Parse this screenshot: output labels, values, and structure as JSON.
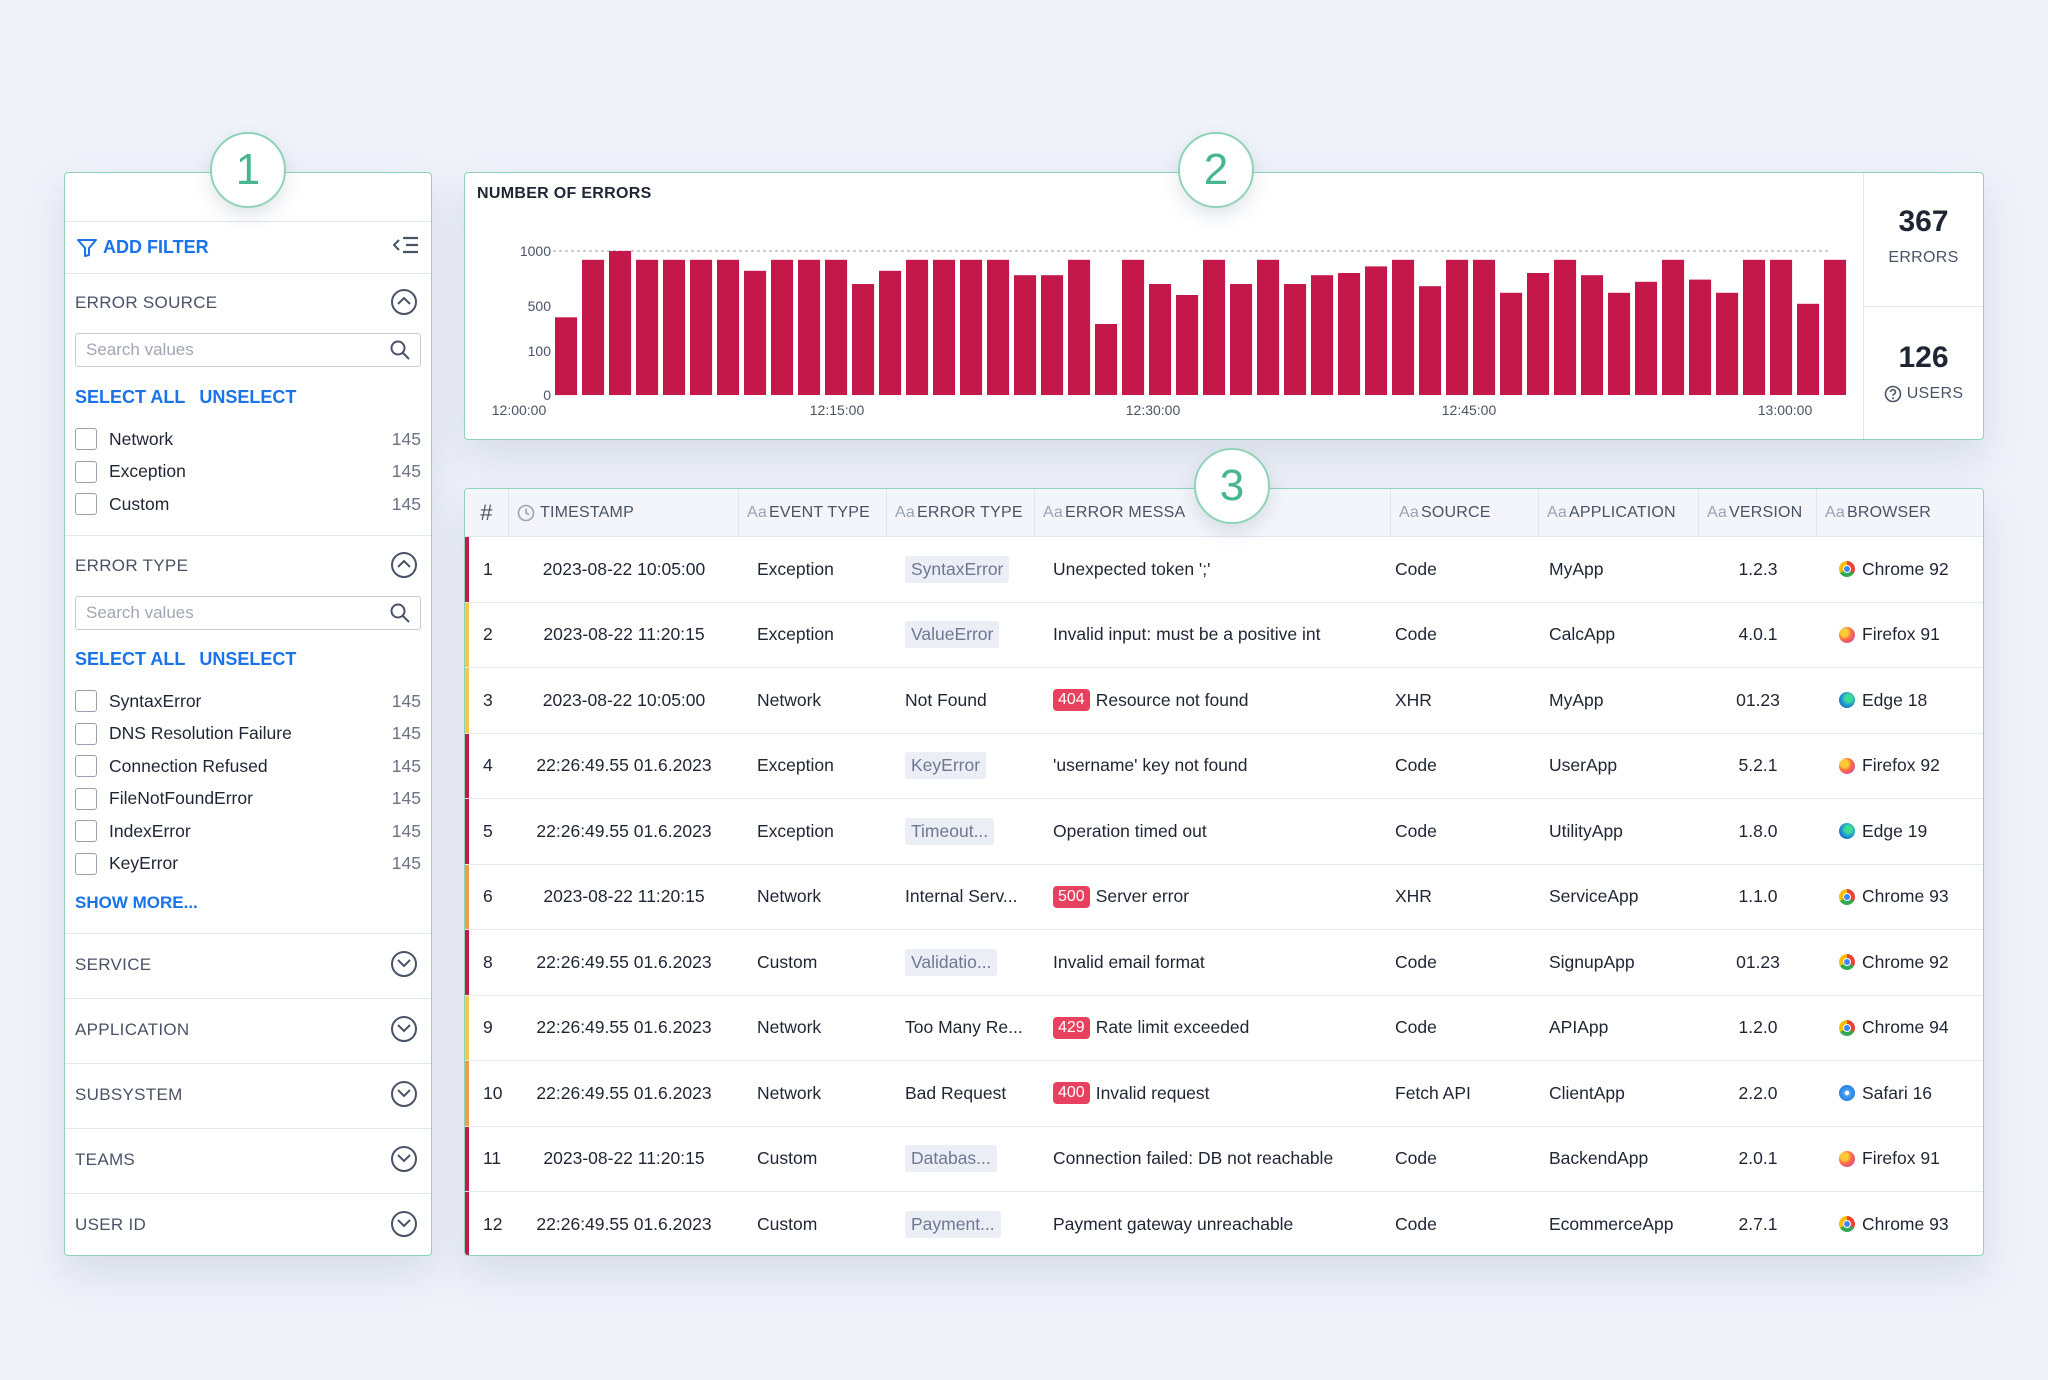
{
  "steps": [
    "1",
    "2",
    "3"
  ],
  "sidebar": {
    "add_filter_label": "ADD FILTER",
    "sections": {
      "error_source": {
        "title": "ERROR SOURCE",
        "search_placeholder": "Search values",
        "select_all": "SELECT ALL",
        "unselect": "UNSELECT",
        "items": [
          {
            "label": "Network",
            "count": "145"
          },
          {
            "label": "Exception",
            "count": "145"
          },
          {
            "label": "Custom",
            "count": "145"
          }
        ]
      },
      "error_type": {
        "title": "ERROR TYPE",
        "search_placeholder": "Search values",
        "select_all": "SELECT ALL",
        "unselect": "UNSELECT",
        "items": [
          {
            "label": "SyntaxError",
            "count": "145"
          },
          {
            "label": "DNS Resolution Failure",
            "count": "145"
          },
          {
            "label": "Connection Refused",
            "count": "145"
          },
          {
            "label": "FileNotFoundError",
            "count": "145"
          },
          {
            "label": "IndexError",
            "count": "145"
          },
          {
            "label": "KeyError",
            "count": "145"
          }
        ],
        "show_more": "SHOW MORE..."
      },
      "collapsed": [
        "SERVICE",
        "APPLICATION",
        "SUBSYSTEM",
        "TEAMS",
        "USER ID"
      ]
    }
  },
  "stats": {
    "errors_value": "367",
    "errors_label": "ERRORS",
    "users_value": "126",
    "users_label": "USERS"
  },
  "chart_data": {
    "type": "bar",
    "title": "NUMBER OF ERRORS",
    "xlabel": "",
    "ylabel": "",
    "color": "#c4174a",
    "y_tick_labels": [
      "0",
      "100",
      "500",
      "1000"
    ],
    "x_tick_labels": [
      "12:00:00",
      "12:15:00",
      "12:30:00",
      "12:45:00",
      "13:00:00"
    ],
    "scale": "non-linear (ticks 0, 100, 500, 1000 equally spaced)",
    "values": [
      400,
      920,
      1000,
      920,
      920,
      920,
      920,
      820,
      920,
      920,
      920,
      700,
      820,
      920,
      920,
      920,
      920,
      780,
      780,
      920,
      340,
      920,
      700,
      600,
      920,
      700,
      920,
      700,
      780,
      800,
      860,
      920,
      680,
      920,
      920,
      620,
      800,
      920,
      780,
      620,
      720,
      920,
      740,
      620,
      920,
      920,
      520,
      920
    ]
  },
  "table": {
    "columns": [
      {
        "label": "#",
        "aa": ""
      },
      {
        "label": "TIMESTAMP",
        "aa": ""
      },
      {
        "label": "EVENT TYPE",
        "aa": "Aa"
      },
      {
        "label": "ERROR TYPE",
        "aa": "Aa"
      },
      {
        "label": "ERROR MESSA",
        "aa": "Aa"
      },
      {
        "label": "SOURCE",
        "aa": "Aa"
      },
      {
        "label": "APPLICATION",
        "aa": "Aa"
      },
      {
        "label": "VERSION",
        "aa": "Aa"
      },
      {
        "label": "BROWSER",
        "aa": "Aa"
      }
    ],
    "rows": [
      {
        "num": "1",
        "timestamp": "2023-08-22 10:05:00",
        "event_type": "Exception",
        "error_type": "SyntaxError",
        "error_type_tag": true,
        "code": "",
        "message": "Unexpected token ';'",
        "source": "Code",
        "application": "MyApp",
        "version": "1.2.3",
        "browser": "Chrome 92",
        "browser_icon": "chrome-icon",
        "severity_color": "#c4174a"
      },
      {
        "num": "2",
        "timestamp": "2023-08-22 11:20:15",
        "event_type": "Exception",
        "error_type": "ValueError",
        "error_type_tag": true,
        "code": "",
        "message": "Invalid input: must be a positive int",
        "source": "Code",
        "application": "CalcApp",
        "version": "4.0.1",
        "browser": "Firefox 91",
        "browser_icon": "firefox-icon",
        "severity_color": "#f2c94c"
      },
      {
        "num": "3",
        "timestamp": "2023-08-22 10:05:00",
        "event_type": "Network",
        "error_type": "Not Found",
        "error_type_tag": false,
        "code": "404",
        "message": "Resource not found",
        "source": "XHR",
        "application": "MyApp",
        "version": "01.23",
        "browser": "Edge 18",
        "browser_icon": "edge-icon",
        "severity_color": "#f2c94c"
      },
      {
        "num": "4",
        "timestamp": "22:26:49.55 01.6.2023",
        "event_type": "Exception",
        "error_type": "KeyError",
        "error_type_tag": true,
        "code": "",
        "message": "'username' key not found",
        "source": "Code",
        "application": "UserApp",
        "version": "5.2.1",
        "browser": "Firefox 92",
        "browser_icon": "firefox-icon",
        "severity_color": "#c4174a"
      },
      {
        "num": "5",
        "timestamp": "22:26:49.55 01.6.2023",
        "event_type": "Exception",
        "error_type": "Timeout...",
        "error_type_tag": true,
        "code": "",
        "message": "Operation timed out",
        "source": "Code",
        "application": "UtilityApp",
        "version": "1.8.0",
        "browser": "Edge 19",
        "browser_icon": "edge-icon",
        "severity_color": "#c4174a"
      },
      {
        "num": "6",
        "timestamp": "2023-08-22 11:20:15",
        "event_type": "Network",
        "error_type": "Internal Serv...",
        "error_type_tag": false,
        "code": "500",
        "message": "Server error",
        "source": "XHR",
        "application": "ServiceApp",
        "version": "1.1.0",
        "browser": "Chrome 93",
        "browser_icon": "chrome-icon",
        "severity_color": "#f2994a"
      },
      {
        "num": "8",
        "timestamp": "22:26:49.55 01.6.2023",
        "event_type": "Custom",
        "error_type": "Validatio...",
        "error_type_tag": true,
        "code": "",
        "message": "Invalid email format",
        "source": "Code",
        "application": "SignupApp",
        "version": "01.23",
        "browser": "Chrome 92",
        "browser_icon": "chrome-icon",
        "severity_color": "#c4174a"
      },
      {
        "num": "9",
        "timestamp": "22:26:49.55 01.6.2023",
        "event_type": "Network",
        "error_type": "Too Many Re...",
        "error_type_tag": false,
        "code": "429",
        "message": "Rate limit exceeded",
        "source": "Code",
        "application": "APIApp",
        "version": "1.2.0",
        "browser": "Chrome 94",
        "browser_icon": "chrome-icon",
        "severity_color": "#f2c94c"
      },
      {
        "num": "10",
        "timestamp": "22:26:49.55 01.6.2023",
        "event_type": "Network",
        "error_type": "Bad Request",
        "error_type_tag": false,
        "code": "400",
        "message": "Invalid request",
        "source": "Fetch API",
        "application": "ClientApp",
        "version": "2.2.0",
        "browser": "Safari 16",
        "browser_icon": "safari-icon",
        "severity_color": "#f2994a"
      },
      {
        "num": "11",
        "timestamp": "2023-08-22 11:20:15",
        "event_type": "Custom",
        "error_type": "Databas...",
        "error_type_tag": true,
        "code": "",
        "message": "Connection failed: DB not reachable",
        "source": "Code",
        "application": "BackendApp",
        "version": "2.0.1",
        "browser": "Firefox 91",
        "browser_icon": "firefox-icon",
        "severity_color": "#c4174a"
      },
      {
        "num": "12",
        "timestamp": "22:26:49.55 01.6.2023",
        "event_type": "Custom",
        "error_type": "Payment...",
        "error_type_tag": true,
        "code": "",
        "message": "Payment gateway unreachable",
        "source": "Code",
        "application": "EcommerceApp",
        "version": "2.7.1",
        "browser": "Chrome 93",
        "browser_icon": "chrome-icon",
        "severity_color": "#c4174a"
      }
    ]
  }
}
